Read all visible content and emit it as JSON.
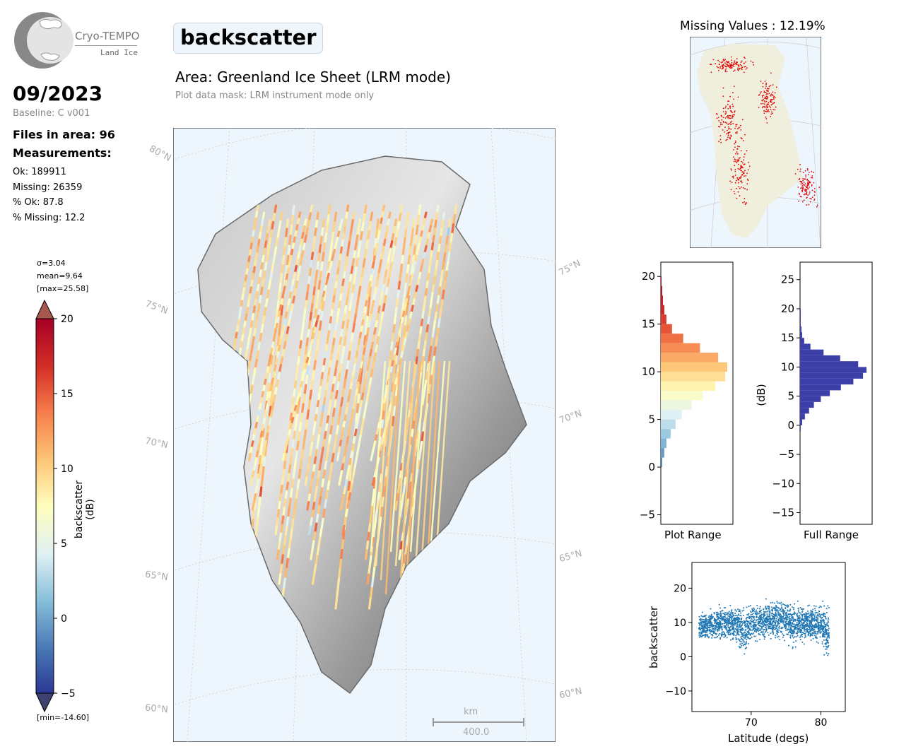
{
  "header": {
    "logo_name": "Cryo-TEMPO",
    "logo_sub": "Land Ice",
    "date": "09/2023",
    "baseline": "Baseline: C v001",
    "files": "Files in area: 96",
    "measurements_heading": "Measurements:",
    "stats": [
      "Ok: 189911",
      "Missing: 26359",
      "% Ok: 87.8",
      "% Missing: 12.2"
    ],
    "title": "backscatter",
    "area": "Area: Greenland Ice Sheet (LRM mode)",
    "mask": "Plot data mask: LRM instrument mode only"
  },
  "colorbar": {
    "sigma": "σ=3.04",
    "mean": "mean=9.64",
    "max": "[max=25.58]",
    "min": "[min=-14.60]",
    "label": "backscatter (dB)",
    "ticks": [
      "20",
      "15",
      "10",
      "5",
      "0",
      "−5"
    ],
    "colors": [
      "#2c3894",
      "#4979b6",
      "#89c0da",
      "#dff0f4",
      "#fffebe",
      "#fdc778",
      "#f67d4b",
      "#d42f27",
      "#a60026"
    ]
  },
  "map": {
    "graticule_labels_left": [
      "80°N",
      "75°N",
      "70°N",
      "65°N",
      "60°N"
    ],
    "graticule_labels_right": [
      "75°N",
      "70°N",
      "65°N",
      "60°N"
    ],
    "scalebar_unit": "km",
    "scalebar_value": "400.0",
    "ocean_color": "#eef6fd"
  },
  "chart_data": [
    {
      "type": "map-inset",
      "title": "Missing Values : 12.19%",
      "land_color": "#f0eedc",
      "point_color": "#e00000"
    },
    {
      "type": "bar",
      "orientation": "horizontal-histogram",
      "xlabel": "Plot Range",
      "ylabel": "",
      "ylim": [
        -6,
        21.5
      ],
      "yticks": [
        "20",
        "15",
        "10",
        "5",
        "0",
        "−5"
      ],
      "bin_centers": [
        0.5,
        1.5,
        2.5,
        3.5,
        4.5,
        5.5,
        6.5,
        7.5,
        8.5,
        9.5,
        10.5,
        11.5,
        12.5,
        13.5,
        14.5,
        15.5,
        16.5,
        17.5,
        18.5,
        19.5
      ],
      "counts": [
        2,
        5,
        8,
        14,
        21,
        30,
        44,
        60,
        78,
        92,
        95,
        82,
        56,
        32,
        16,
        8,
        5,
        3,
        2,
        1
      ]
    },
    {
      "type": "bar",
      "orientation": "horizontal-histogram",
      "xlabel": "Full Range",
      "ylabel": "(dB)",
      "ylim": [
        -17,
        28
      ],
      "yticks": [
        "25",
        "20",
        "15",
        "10",
        "5",
        "0",
        "−5",
        "−10",
        "−15"
      ],
      "color": "#3d3fa8",
      "bin_centers": [
        -0.5,
        0.5,
        1.5,
        2.5,
        3.5,
        4.5,
        5.5,
        6.5,
        7.5,
        8.5,
        9.5,
        10.5,
        11.5,
        12.5,
        13.5,
        14.5,
        15.5,
        16.5,
        17.5,
        18.5,
        19.5
      ],
      "counts": [
        1,
        3,
        7,
        13,
        20,
        30,
        43,
        59,
        77,
        91,
        96,
        84,
        58,
        34,
        15,
        6,
        3,
        2,
        1,
        1,
        1
      ]
    },
    {
      "type": "scatter",
      "xlabel": "Latitude (degs)",
      "ylabel": "backscatter",
      "xlim": [
        61.5,
        83.5
      ],
      "ylim": [
        -16,
        27.5
      ],
      "xticks": [
        "70",
        "80"
      ],
      "yticks": [
        "20",
        "10",
        "0",
        "−10"
      ],
      "color": "#1f77b4",
      "band": [
        {
          "lat": 62.5,
          "mean": 8.5,
          "spread": 4
        },
        {
          "lat": 64,
          "mean": 9.5,
          "spread": 4.5
        },
        {
          "lat": 66,
          "mean": 10,
          "spread": 5
        },
        {
          "lat": 68,
          "mean": 9.5,
          "spread": 5.5
        },
        {
          "lat": 69,
          "mean": 7,
          "spread": 8
        },
        {
          "lat": 70,
          "mean": 9.5,
          "spread": 6
        },
        {
          "lat": 72,
          "mean": 10.5,
          "spread": 5.5
        },
        {
          "lat": 74,
          "mean": 10.5,
          "spread": 6
        },
        {
          "lat": 75,
          "mean": 11,
          "spread": 6
        },
        {
          "lat": 76,
          "mean": 9,
          "spread": 6
        },
        {
          "lat": 78,
          "mean": 10,
          "spread": 5
        },
        {
          "lat": 80,
          "mean": 9.5,
          "spread": 6
        },
        {
          "lat": 81,
          "mean": 7,
          "spread": 9
        }
      ]
    }
  ]
}
